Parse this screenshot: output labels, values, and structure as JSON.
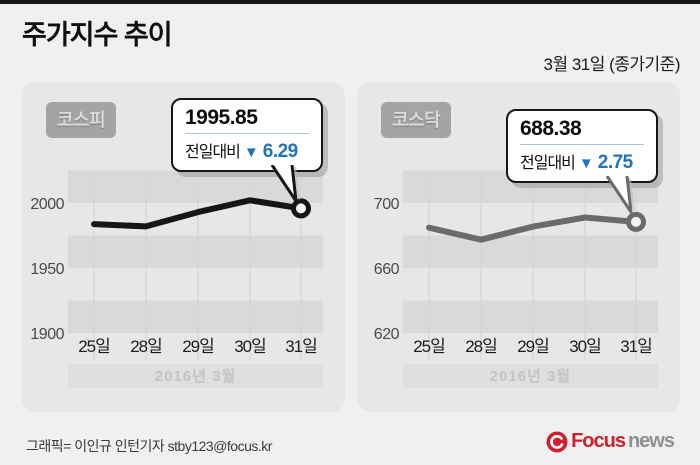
{
  "page": {
    "title": "주가지수 추이",
    "date_note": "3월 31일 (종가기준)",
    "footer": {
      "credit": "그래픽= 이인규 인턴기자 stby123@focus.kr",
      "logo_focus": "Focus",
      "logo_news": "news"
    }
  },
  "colors": {
    "down_blue": "#2273b9",
    "logo_red": "#cc2030",
    "logo_gray": "#8d9194",
    "kospi_line": "#161616",
    "kosdaq_line": "#6b6b6b"
  },
  "chart_data": [
    {
      "type": "line",
      "name": "KOSPI",
      "badge": "코스피",
      "x": [
        "25일",
        "28일",
        "29일",
        "30일",
        "31일"
      ],
      "values": [
        1983.8,
        1982.0,
        1993.0,
        2002.1,
        1995.85
      ],
      "y_ticks": [
        2000,
        1950,
        1900
      ],
      "ylim": [
        1887,
        2026
      ],
      "x_axis_note": "2016년 3월",
      "line_color": "#161616",
      "callout": {
        "value": "1995.85",
        "label": "전일대비",
        "down_symbol": "▼",
        "change": "6.29"
      }
    },
    {
      "type": "line",
      "name": "KOSDAQ",
      "badge": "코스닥",
      "x": [
        "25일",
        "28일",
        "29일",
        "30일",
        "31일"
      ],
      "values": [
        684.8,
        677.4,
        685.5,
        691.1,
        688.38
      ],
      "y_ticks": [
        700,
        660,
        620
      ],
      "ylim": [
        610,
        722
      ],
      "x_axis_note": "2016년 3월",
      "line_color": "#6b6b6b",
      "callout": {
        "value": "688.38",
        "label": "전일대비",
        "down_symbol": "▼",
        "change": "2.75"
      }
    }
  ]
}
